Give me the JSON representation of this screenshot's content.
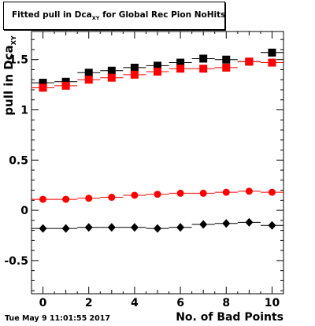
{
  "chart_data": {
    "type": "scatter",
    "title": "Fitted pull in Dca",
    "title_subscript": "XY",
    "title_suffix": " for Global Rec Pion NoHits",
    "xlabel": "No. of Bad Points",
    "ylabel": "pull in Dca",
    "ylabel_subscript": "XY",
    "xlim": [
      -0.5,
      10.5
    ],
    "ylim": [
      -0.83,
      1.78
    ],
    "x_ticks": [
      "0",
      "2",
      "4",
      "6",
      "8",
      "10"
    ],
    "y_ticks": [
      "-0.5",
      "0",
      "0.5",
      "1",
      "1.5"
    ],
    "x_tick_values": [
      0,
      2,
      4,
      6,
      8,
      10
    ],
    "y_tick_values": [
      -0.5,
      0,
      0.5,
      1,
      1.5
    ],
    "grid": false,
    "x": [
      0,
      1,
      2,
      3,
      4,
      5,
      6,
      7,
      8,
      9,
      10
    ],
    "series": [
      {
        "marker": "square",
        "color": "#000000",
        "values": [
          1.27,
          1.28,
          1.37,
          1.39,
          1.42,
          1.44,
          1.47,
          1.51,
          1.5,
          1.48,
          1.57
        ]
      },
      {
        "marker": "square",
        "color": "#ff0000",
        "values": [
          1.22,
          1.24,
          1.3,
          1.32,
          1.35,
          1.38,
          1.41,
          1.41,
          1.42,
          1.48,
          1.47
        ]
      },
      {
        "marker": "circle",
        "color": "#ff0000",
        "values": [
          0.11,
          0.11,
          0.12,
          0.13,
          0.15,
          0.16,
          0.17,
          0.17,
          0.18,
          0.19,
          0.18
        ]
      },
      {
        "marker": "diamond",
        "color": "#000000",
        "values": [
          -0.18,
          -0.18,
          -0.17,
          -0.17,
          -0.17,
          -0.18,
          -0.17,
          -0.14,
          -0.13,
          -0.12,
          -0.15
        ]
      }
    ]
  },
  "footer": {
    "timestamp": "Tue May  9 11:01:55 2017"
  }
}
